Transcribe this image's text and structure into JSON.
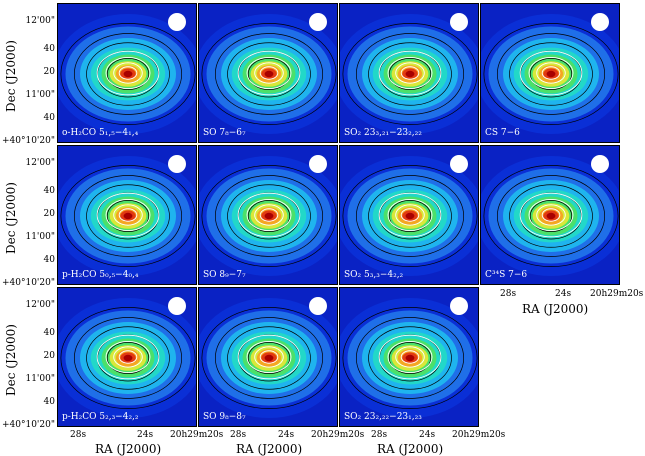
{
  "figure": {
    "x_axis_title": "RA (J2000)",
    "y_axis_title": "Dec (J2000)",
    "y_ticks": [
      "12'00\"",
      "40",
      "20",
      "11'00\"",
      "40",
      "+40°10'20\""
    ],
    "x_ticks": [
      "28s",
      "24s",
      "20h29m20s"
    ]
  },
  "panels": [
    {
      "label": "o-H₂CO 5₁,₅−4₁,₄"
    },
    {
      "label": "SO 7₈−6₇"
    },
    {
      "label": "SO₂ 23₃,₂₁−23₂,₂₂"
    },
    {
      "label": "CS 7−6"
    },
    {
      "label": "p-H₂CO 5₀,₅−4₀,₄"
    },
    {
      "label": "SO 8₉−7₇"
    },
    {
      "label": "SO₂ 5₃,₃−4₂,₂"
    },
    {
      "label": "C³⁴S 7−6"
    },
    {
      "label": "p-H₂CO 5₂,₃−4₂,₂"
    },
    {
      "label": "SO 9₈−8₇"
    },
    {
      "label": "SO₂ 23₂,₂₂−23₁,₂₃"
    }
  ],
  "colors": {
    "background_blue": "#1030d8",
    "peak_red": "#b00000",
    "contour_black": "#000000",
    "contour_white": "#ffffff"
  }
}
